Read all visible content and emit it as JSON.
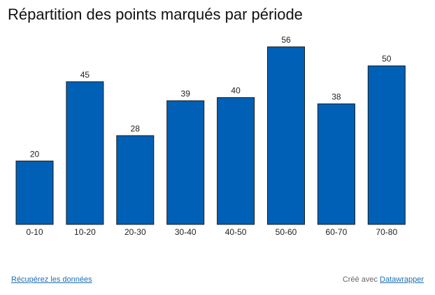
{
  "chart_data": {
    "type": "bar",
    "title": "Répartition des points marqués par période",
    "categories": [
      "0-10",
      "10-20",
      "20-30",
      "30-40",
      "40-50",
      "50-60",
      "60-70",
      "70-80"
    ],
    "values": [
      20,
      45,
      28,
      39,
      40,
      56,
      38,
      50
    ],
    "ylim": [
      0,
      56
    ],
    "grid": false,
    "bar_color": "#0060b6"
  },
  "footer": {
    "data_link": "Récupérez les données",
    "credit_prefix": "Créé avec",
    "credit_link": "Datawrapper"
  }
}
